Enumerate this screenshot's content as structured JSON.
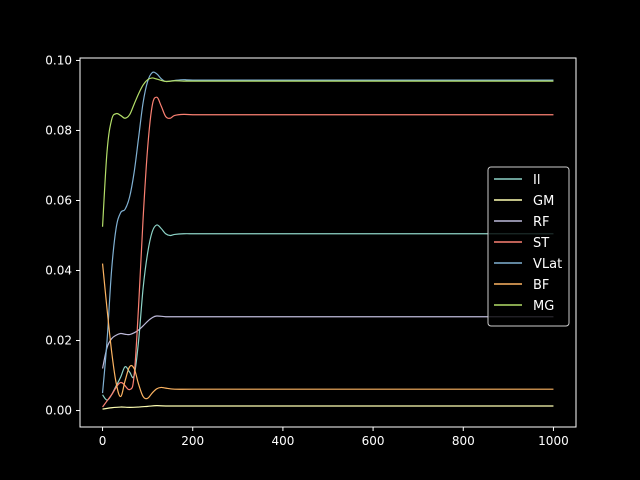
{
  "chart_data": {
    "type": "line",
    "title": "",
    "xlabel": "",
    "ylabel": "",
    "xlim": [
      -50,
      1050
    ],
    "ylim": [
      -0.0047,
      0.1007
    ],
    "xticks": [
      0,
      200,
      400,
      600,
      800,
      1000
    ],
    "xtick_labels": [
      "0",
      "200",
      "400",
      "600",
      "800",
      "1000"
    ],
    "yticks": [
      0.0,
      0.02,
      0.04,
      0.06,
      0.08,
      0.1
    ],
    "ytick_labels": [
      "0.00",
      "0.02",
      "0.04",
      "0.06",
      "0.08",
      "0.10"
    ],
    "grid": false,
    "legend_position": "center-right",
    "background": "#000000",
    "axis_color": "#ffffff",
    "series": [
      {
        "name": "Il",
        "color": "#8dd3c7",
        "x": [
          0,
          10,
          20,
          30,
          40,
          50,
          60,
          70,
          80,
          90,
          100,
          110,
          120,
          130,
          140,
          150,
          160,
          180,
          200,
          220,
          250,
          300,
          400,
          600,
          800,
          1000
        ],
        "y": [
          0.0045,
          0.003,
          0.0045,
          0.007,
          0.0095,
          0.0125,
          0.011,
          0.01,
          0.02,
          0.035,
          0.045,
          0.051,
          0.053,
          0.052,
          0.0505,
          0.05,
          0.0503,
          0.0505,
          0.0505,
          0.0505,
          0.0505,
          0.0505,
          0.0505,
          0.0505,
          0.0505,
          0.0505
        ]
      },
      {
        "name": "GM",
        "color": "#ffffb3",
        "x": [
          0,
          20,
          40,
          60,
          80,
          100,
          120,
          140,
          200,
          300,
          400,
          600,
          800,
          1000
        ],
        "y": [
          0.0004,
          0.0008,
          0.001,
          0.0009,
          0.001,
          0.0012,
          0.0014,
          0.0013,
          0.0013,
          0.0013,
          0.0013,
          0.0013,
          0.0013,
          0.0013
        ]
      },
      {
        "name": "RF",
        "color": "#bebada",
        "x": [
          0,
          10,
          20,
          30,
          40,
          50,
          60,
          70,
          80,
          90,
          100,
          110,
          120,
          140,
          160,
          200,
          300,
          400,
          600,
          800,
          1000
        ],
        "y": [
          0.012,
          0.018,
          0.0205,
          0.0215,
          0.022,
          0.0218,
          0.0217,
          0.0222,
          0.023,
          0.0242,
          0.0255,
          0.0265,
          0.027,
          0.0268,
          0.0268,
          0.0268,
          0.0268,
          0.0268,
          0.0268,
          0.0268,
          0.0268
        ]
      },
      {
        "name": "ST",
        "color": "#fb8072",
        "x": [
          0,
          20,
          40,
          60,
          70,
          80,
          90,
          100,
          110,
          120,
          130,
          140,
          150,
          160,
          180,
          200,
          250,
          400,
          600,
          800,
          1000
        ],
        "y": [
          0.001,
          0.0045,
          0.008,
          0.006,
          0.01,
          0.03,
          0.055,
          0.075,
          0.087,
          0.0895,
          0.087,
          0.084,
          0.0835,
          0.0843,
          0.0846,
          0.0845,
          0.0845,
          0.0845,
          0.0845,
          0.0845,
          0.0845
        ]
      },
      {
        "name": "VLat",
        "color": "#80b1d3",
        "x": [
          0,
          10,
          20,
          30,
          40,
          50,
          60,
          70,
          80,
          90,
          100,
          110,
          120,
          130,
          140,
          160,
          180,
          200,
          300,
          400,
          600,
          800,
          1000
        ],
        "y": [
          0.005,
          0.02,
          0.04,
          0.052,
          0.0565,
          0.0575,
          0.061,
          0.068,
          0.078,
          0.088,
          0.094,
          0.0965,
          0.0962,
          0.0948,
          0.094,
          0.0943,
          0.0945,
          0.0944,
          0.0944,
          0.0944,
          0.0944,
          0.0944,
          0.0944
        ]
      },
      {
        "name": "BF",
        "color": "#fdb462",
        "x": [
          0,
          10,
          20,
          30,
          40,
          50,
          60,
          70,
          80,
          90,
          100,
          110,
          120,
          130,
          140,
          160,
          200,
          300,
          400,
          600,
          800,
          1000
        ],
        "y": [
          0.042,
          0.029,
          0.017,
          0.008,
          0.004,
          0.0085,
          0.0125,
          0.012,
          0.0075,
          0.004,
          0.0035,
          0.005,
          0.0062,
          0.0066,
          0.0064,
          0.0061,
          0.0061,
          0.0061,
          0.0061,
          0.0061,
          0.0061,
          0.0061
        ]
      },
      {
        "name": "MG",
        "color": "#b3de69",
        "x": [
          0,
          10,
          20,
          30,
          40,
          50,
          60,
          70,
          80,
          90,
          100,
          110,
          120,
          140,
          160,
          180,
          200,
          300,
          400,
          600,
          800,
          1000
        ],
        "y": [
          0.0525,
          0.074,
          0.083,
          0.0848,
          0.0843,
          0.0835,
          0.0845,
          0.0875,
          0.0905,
          0.093,
          0.0945,
          0.095,
          0.0947,
          0.094,
          0.0942,
          0.0941,
          0.0941,
          0.0941,
          0.0941,
          0.0941,
          0.0941,
          0.0941
        ]
      }
    ]
  }
}
